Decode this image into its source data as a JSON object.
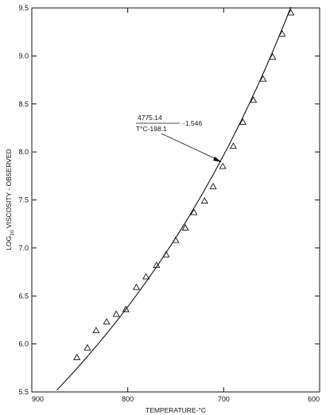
{
  "chart_data": {
    "type": "scatter",
    "xlabel": "TEMPERATURE-°C",
    "ylabel": "LOG10 VISCOSITY - OBSERVED",
    "ylabel_parts": {
      "a": "LOG",
      "sub": "10",
      "b": " VISCOSITY - OBSERVED"
    },
    "xlim": [
      900,
      600
    ],
    "ylim": [
      5.5,
      9.5
    ],
    "x_ticks": [
      900,
      800,
      700,
      600
    ],
    "x_tick_labels": [
      "900",
      "800",
      "700",
      "600"
    ],
    "y_ticks": [
      5.5,
      6.0,
      6.5,
      7.0,
      7.5,
      8.0,
      8.5,
      9.0,
      9.5
    ],
    "y_tick_labels": [
      "5.5",
      "6.0",
      "6.5",
      "7.0",
      "7.5",
      "8.0",
      "8.5",
      "9.0",
      "9.5"
    ],
    "marker": "triangle",
    "grid": false,
    "series": [
      {
        "values": [
          {
            "x": 853,
            "y": 5.86
          },
          {
            "x": 842,
            "y": 5.96
          },
          {
            "x": 833,
            "y": 6.14
          },
          {
            "x": 822,
            "y": 6.23
          },
          {
            "x": 812,
            "y": 6.31
          },
          {
            "x": 802,
            "y": 6.36
          },
          {
            "x": 791,
            "y": 6.59
          },
          {
            "x": 781,
            "y": 6.7
          },
          {
            "x": 770,
            "y": 6.82
          },
          {
            "x": 760,
            "y": 6.93
          },
          {
            "x": 750,
            "y": 7.08
          },
          {
            "x": 740,
            "y": 7.21
          },
          {
            "x": 731,
            "y": 7.37
          },
          {
            "x": 720,
            "y": 7.49
          },
          {
            "x": 711,
            "y": 7.64
          },
          {
            "x": 701,
            "y": 7.85
          },
          {
            "x": 690,
            "y": 8.06
          },
          {
            "x": 680,
            "y": 8.31
          },
          {
            "x": 669,
            "y": 8.54
          },
          {
            "x": 659,
            "y": 8.76
          },
          {
            "x": 649,
            "y": 8.99
          },
          {
            "x": 639,
            "y": 9.23
          },
          {
            "x": 630,
            "y": 9.45
          }
        ]
      }
    ],
    "fit_curve": {
      "form": "A/(T-B)-C",
      "A": 4775.14,
      "B": 198.1,
      "C": 1.546,
      "label_numerator": "4775.14",
      "label_denominator": "T°C-198.1",
      "label_suffix": "-1.546"
    }
  }
}
